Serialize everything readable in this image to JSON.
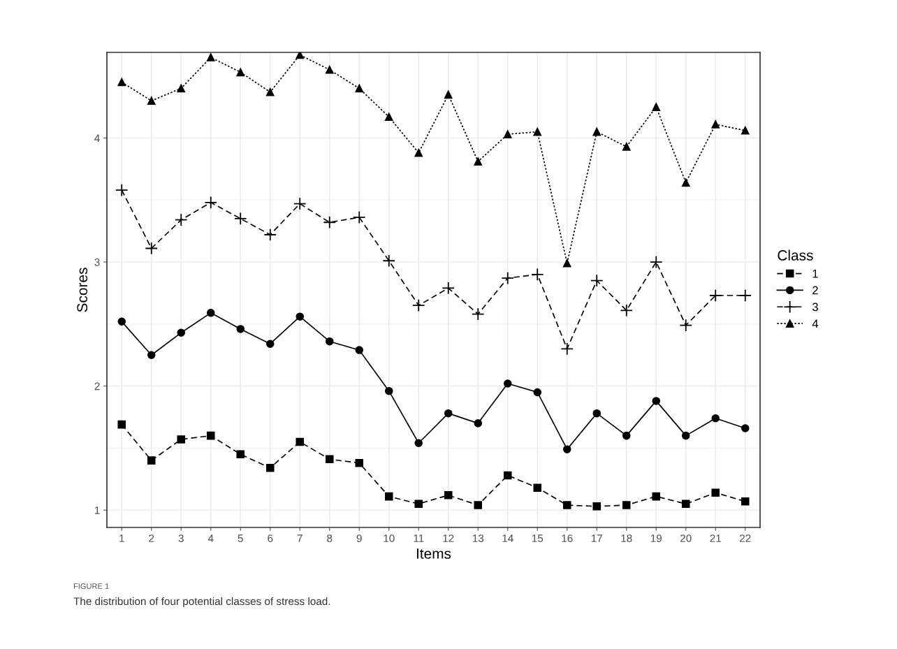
{
  "chart_data": {
    "type": "line",
    "xlabel": "Items",
    "ylabel": "Scores",
    "legend_title": "Class",
    "legend": "right",
    "grid": true,
    "categories": [
      "1",
      "2",
      "3",
      "4",
      "5",
      "6",
      "7",
      "8",
      "9",
      "10",
      "11",
      "12",
      "13",
      "14",
      "15",
      "16",
      "17",
      "18",
      "19",
      "20",
      "21",
      "22"
    ],
    "ylim": [
      0.86,
      4.69
    ],
    "yticks": [
      1,
      2,
      3,
      4
    ],
    "series": [
      {
        "name": "1",
        "color": "#000000",
        "marker": "square",
        "line_style": "dashed",
        "values": [
          1.69,
          1.4,
          1.57,
          1.6,
          1.45,
          1.34,
          1.55,
          1.41,
          1.38,
          1.11,
          1.05,
          1.12,
          1.04,
          1.28,
          1.18,
          1.04,
          1.03,
          1.04,
          1.11,
          1.05,
          1.14,
          1.07
        ]
      },
      {
        "name": "2",
        "color": "#000000",
        "marker": "circle",
        "line_style": "solid",
        "values": [
          2.52,
          2.25,
          2.43,
          2.59,
          2.46,
          2.34,
          2.56,
          2.36,
          2.29,
          1.96,
          1.54,
          1.78,
          1.7,
          2.02,
          1.95,
          1.49,
          1.78,
          1.6,
          1.88,
          1.6,
          1.74,
          1.66
        ]
      },
      {
        "name": "3",
        "color": "#000000",
        "marker": "cross",
        "line_style": "dashed",
        "values": [
          3.58,
          3.11,
          3.34,
          3.48,
          3.35,
          3.22,
          3.47,
          3.32,
          3.36,
          3.01,
          2.65,
          2.79,
          2.58,
          2.87,
          2.9,
          2.3,
          2.85,
          2.61,
          3.0,
          2.49,
          2.73,
          2.73
        ]
      },
      {
        "name": "4",
        "color": "#000000",
        "marker": "triangle",
        "line_style": "dotted",
        "values": [
          4.45,
          4.3,
          4.4,
          4.65,
          4.53,
          4.37,
          4.67,
          4.55,
          4.4,
          4.17,
          3.88,
          4.35,
          3.81,
          4.03,
          4.05,
          2.99,
          4.05,
          3.93,
          4.25,
          3.64,
          4.11,
          4.06
        ]
      }
    ],
    "annotations": [
      "FIGURE 1",
      "The distribution of four potential classes of stress load."
    ]
  }
}
